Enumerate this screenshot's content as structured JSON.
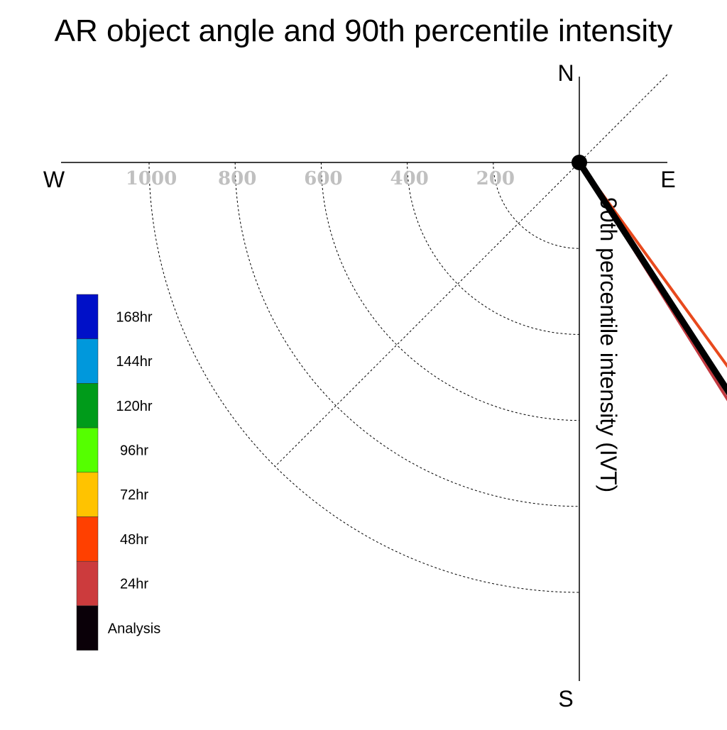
{
  "chart_data": {
    "type": "polar-vector",
    "title": "AR object angle and 90th percentile intensity",
    "radial_axis_label": "90th percentile intensity (IVT)",
    "compass": {
      "north": "N",
      "south": "S",
      "east": "E",
      "west": "W"
    },
    "radial_ticks": [
      200,
      400,
      600,
      800,
      1000
    ],
    "radial_range": [
      0,
      1200
    ],
    "diagonal_reference_line_deg": 45,
    "legend": {
      "placement": "left",
      "entries": [
        {
          "label": "168hr",
          "color": "#0010C8"
        },
        {
          "label": "144hr",
          "color": "#0098DC"
        },
        {
          "label": "120hr",
          "color": "#009B1A"
        },
        {
          "label": "96hr",
          "color": "#55FF00"
        },
        {
          "label": "72hr",
          "color": "#FFC300"
        },
        {
          "label": "48hr",
          "color": "#FF4000"
        },
        {
          "label": "24hr",
          "color": "#CC3B3D"
        },
        {
          "label": "Analysis",
          "color": "#0A0008"
        }
      ]
    },
    "series": [
      {
        "name": "48hr",
        "angle_deg": 144,
        "intensity": 680,
        "color": "#E8491D",
        "width": 4
      },
      {
        "name": "24hr",
        "angle_deg": 148,
        "intensity": 740,
        "color": "#C23A40",
        "width": 4
      },
      {
        "name": "Analysis",
        "angle_deg": 147,
        "intensity": 745,
        "color": "#000000",
        "width": 9
      }
    ]
  }
}
